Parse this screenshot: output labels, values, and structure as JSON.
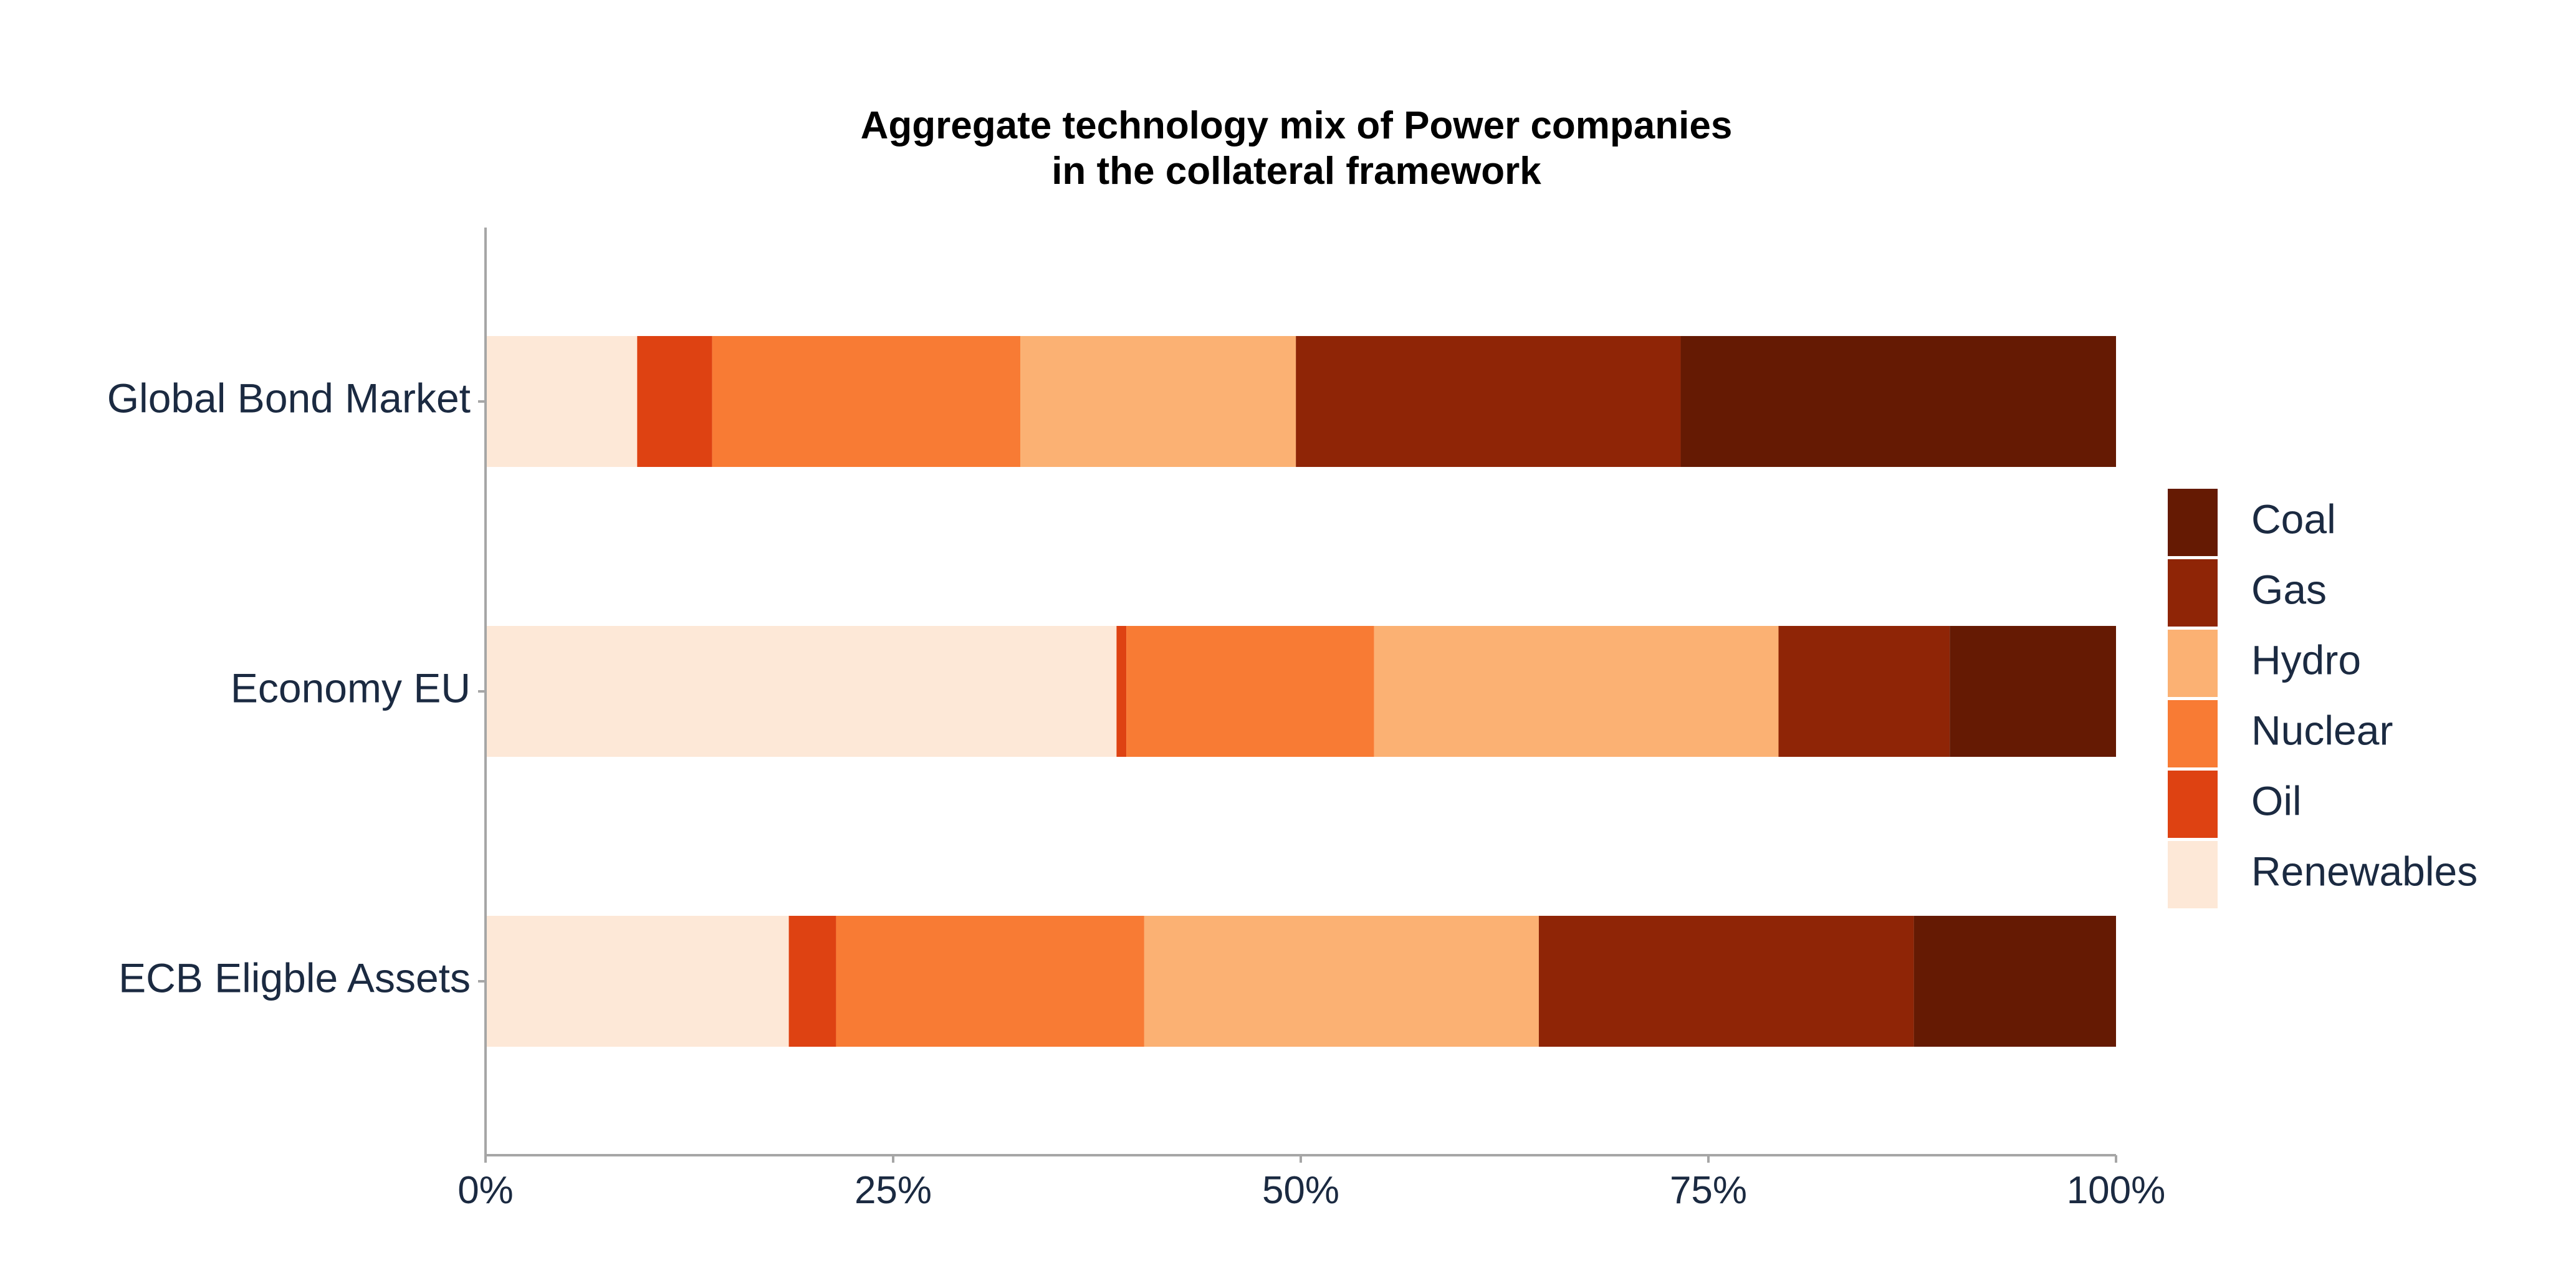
{
  "chart_data": {
    "type": "bar",
    "orientation": "horizontal",
    "stacked": true,
    "percent": true,
    "title": [
      "Aggregate technology mix of Power companies",
      "in the collateral framework"
    ],
    "xlabel": "",
    "ylabel": "",
    "xlim": [
      0,
      100
    ],
    "x_ticks": [
      "0%",
      "25%",
      "50%",
      "75%",
      "100%"
    ],
    "grid": false,
    "legend_position": "right",
    "categories": [
      "Global Bond Market",
      "Economy EU",
      "ECB Eligble Assets"
    ],
    "series": [
      {
        "name": "Renewables",
        "color": "#FDE8D7",
        "values": [
          9.3,
          38.7,
          18.6
        ]
      },
      {
        "name": "Oil",
        "color": "#DE4212",
        "values": [
          4.6,
          0.6,
          2.9
        ]
      },
      {
        "name": "Nuclear",
        "color": "#F87B34",
        "values": [
          18.9,
          15.2,
          18.9
        ]
      },
      {
        "name": "Hydro",
        "color": "#FBB173",
        "values": [
          16.9,
          24.8,
          24.2
        ]
      },
      {
        "name": "Gas",
        "color": "#8F2506",
        "values": [
          23.6,
          10.5,
          23.0
        ]
      },
      {
        "name": "Coal",
        "color": "#651A03",
        "values": [
          26.7,
          10.2,
          12.4
        ]
      }
    ],
    "legend_order": [
      "Coal",
      "Gas",
      "Hydro",
      "Nuclear",
      "Oil",
      "Renewables"
    ]
  }
}
